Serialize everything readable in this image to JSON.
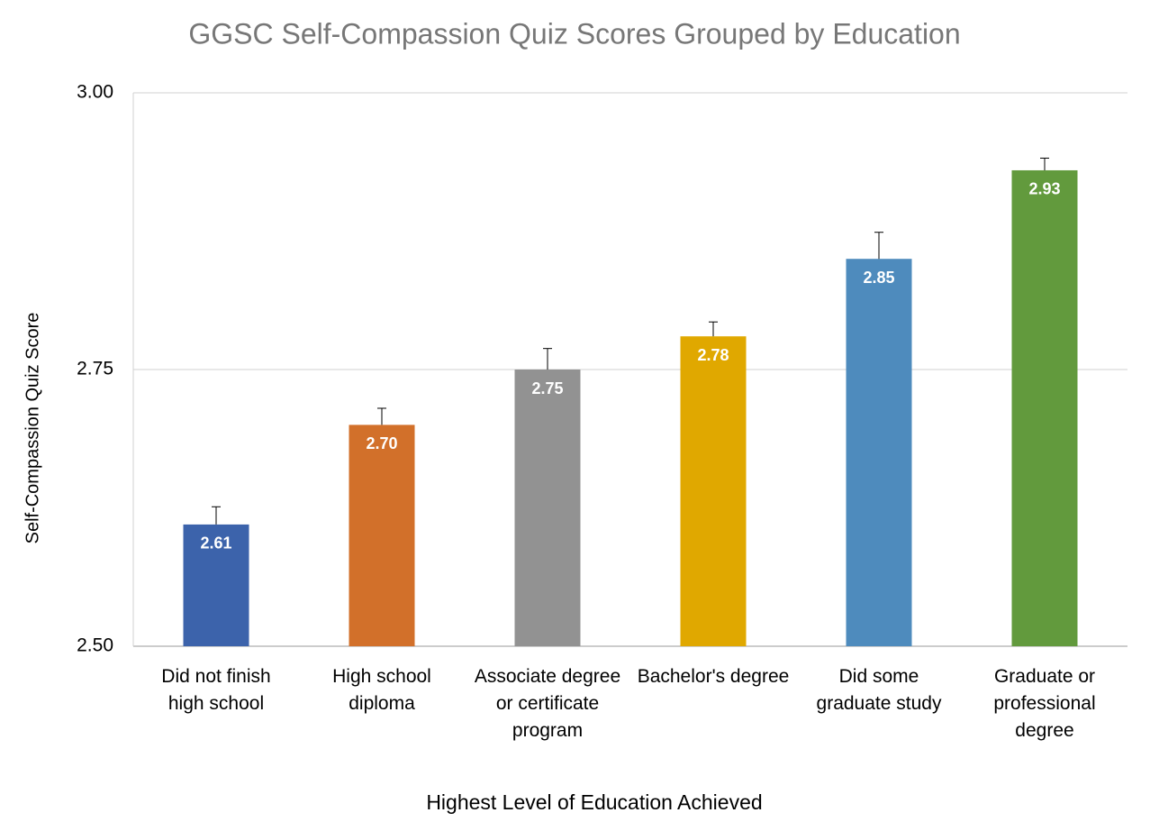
{
  "chart_data": {
    "type": "bar",
    "title": "GGSC Self-Compassion Quiz Scores Grouped by Education",
    "x_label": "Highest Level of Education Achieved",
    "y_label": "Self-Compassion Quiz Score",
    "categories": [
      "Did not finish\nhigh school",
      "High school\ndiploma",
      "Associate degree\nor certificate\nprogram",
      "Bachelor's degree",
      "Did some\ngraduate study",
      "Graduate or\nprofessional\ndegree"
    ],
    "values": [
      2.61,
      2.7,
      2.75,
      2.78,
      2.85,
      2.93
    ],
    "value_labels": [
      "2.61",
      "2.70",
      "2.75",
      "2.78",
      "2.85",
      "2.93"
    ],
    "errors": [
      0.016,
      0.015,
      0.019,
      0.013,
      0.024,
      0.011
    ],
    "colors": [
      "#3c63ab",
      "#d2702a",
      "#929292",
      "#e0a800",
      "#4e8bbd",
      "#629a3d"
    ],
    "ylim": [
      2.5,
      3.0
    ],
    "yticks": [
      {
        "value": 2.5,
        "label": "2.50"
      },
      2.75,
      {
        "value": 3.0,
        "label": "3.00"
      }
    ],
    "grid": true
  }
}
